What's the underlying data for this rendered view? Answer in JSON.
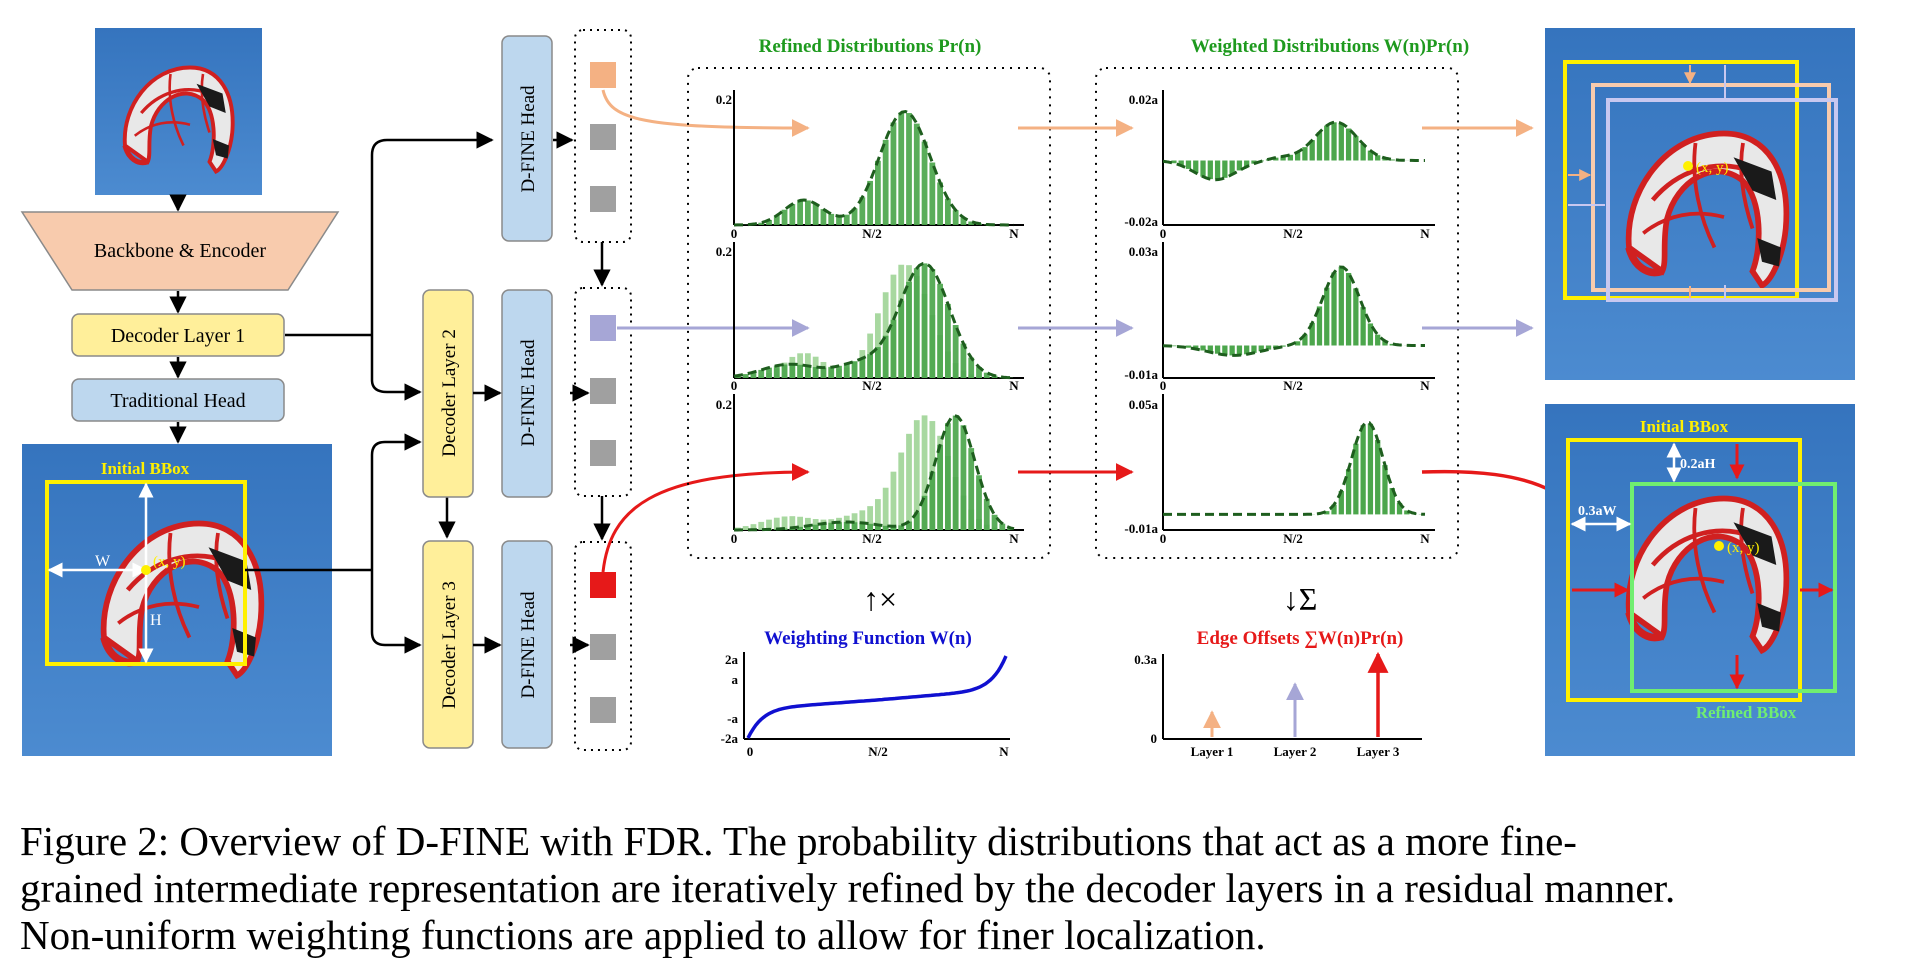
{
  "boxes": {
    "backbone": "Backbone & Encoder",
    "decoder1": "Decoder Layer 1",
    "traditional_head": "Traditional Head",
    "decoder2": "Decoder Layer 2",
    "decoder3": "Decoder Layer 3",
    "dfine_head": "D-FINE Head"
  },
  "image_labels": {
    "initial_bbox": "Initial BBox",
    "refined_bbox": "Refined BBox",
    "w": "W",
    "h": "H",
    "xy": "(x, y)",
    "offset_h": "0.2aH",
    "offset_w": "0.3aW"
  },
  "titles": {
    "refined": "Refined Distributions Pr(n)",
    "weighted": "Weighted Distributions W(n)Pr(n)",
    "weighting_function": "Weighting Function W(n)",
    "edge_offsets": "Edge Offsets ∑W(n)Pr(n)",
    "multiply": "↑×",
    "sum": "↓Σ"
  },
  "axes": {
    "x0": "0",
    "xmid": "N/2",
    "xmax": "N",
    "refined_ymax": "0.2",
    "weighted_rows": [
      {
        "top": "0.02a",
        "bottom": "-0.02a"
      },
      {
        "top": "0.03a",
        "bottom": "-0.01a"
      },
      {
        "top": "0.05a",
        "bottom": "-0.01a"
      }
    ],
    "weighting_ticks": [
      "2a",
      "a",
      "-a",
      "-2a"
    ],
    "edge_ytop": "0.3a",
    "edge_y0": "0",
    "layers": [
      "Layer 1",
      "Layer 2",
      "Layer 3"
    ]
  },
  "colors": {
    "layer1": "#F4B183",
    "layer2": "#A6A6D6",
    "layer3": "#E61919",
    "green_bar": "#4CA64C",
    "green_dash": "#1E5E1E",
    "weighting_curve": "#1010D0",
    "box_yellow": "#FFEF9A",
    "box_blue": "#BDD7EE",
    "box_orange": "#F8CBAD",
    "photo_bg": "#3F7DC0"
  },
  "caption": [
    "Figure 2:  Overview of D-FINE with FDR. The probability distributions that act as a more fine-",
    "grained intermediate representation are iteratively refined by the decoder layers in a residual manner.",
    "Non-uniform weighting functions are applied to allow for finer localization."
  ]
}
